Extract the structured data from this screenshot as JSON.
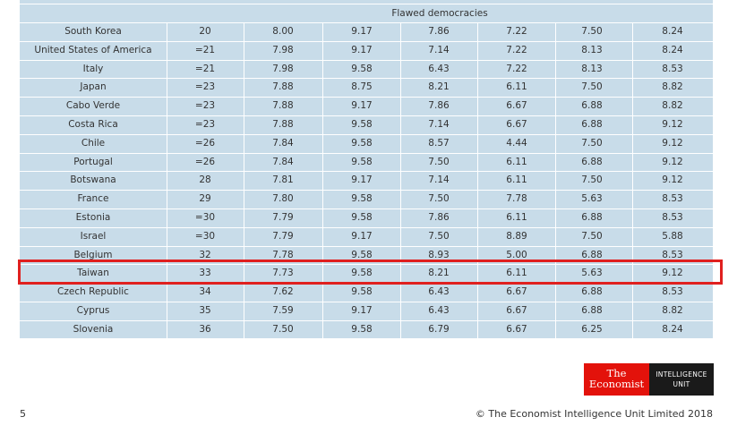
{
  "table": {
    "section_label": "Flawed democracies",
    "rows": [
      [
        "South Korea",
        "20",
        "8.00",
        "9.17",
        "7.86",
        "7.22",
        "7.50",
        "8.24"
      ],
      [
        "United States of America",
        "=21",
        "7.98",
        "9.17",
        "7.14",
        "7.22",
        "8.13",
        "8.24"
      ],
      [
        "Italy",
        "=21",
        "7.98",
        "9.58",
        "6.43",
        "7.22",
        "8.13",
        "8.53"
      ],
      [
        "Japan",
        "=23",
        "7.88",
        "8.75",
        "8.21",
        "6.11",
        "7.50",
        "8.82"
      ],
      [
        "Cabo Verde",
        "=23",
        "7.88",
        "9.17",
        "7.86",
        "6.67",
        "6.88",
        "8.82"
      ],
      [
        "Costa Rica",
        "=23",
        "7.88",
        "9.58",
        "7.14",
        "6.67",
        "6.88",
        "9.12"
      ],
      [
        "Chile",
        "=26",
        "7.84",
        "9.58",
        "8.57",
        "4.44",
        "7.50",
        "9.12"
      ],
      [
        "Portugal",
        "=26",
        "7.84",
        "9.58",
        "7.50",
        "6.11",
        "6.88",
        "9.12"
      ],
      [
        "Botswana",
        "28",
        "7.81",
        "9.17",
        "7.14",
        "6.11",
        "7.50",
        "9.12"
      ],
      [
        "France",
        "29",
        "7.80",
        "9.58",
        "7.50",
        "7.78",
        "5.63",
        "8.53"
      ],
      [
        "Estonia",
        "=30",
        "7.79",
        "9.58",
        "7.86",
        "6.11",
        "6.88",
        "8.53"
      ],
      [
        "Israel",
        "=30",
        "7.79",
        "9.17",
        "7.50",
        "8.89",
        "7.50",
        "5.88"
      ],
      [
        "Belgium",
        "32",
        "7.78",
        "9.58",
        "8.93",
        "5.00",
        "6.88",
        "8.53"
      ],
      [
        "Taiwan",
        "33",
        "7.73",
        "9.58",
        "8.21",
        "6.11",
        "5.63",
        "9.12"
      ],
      [
        "Czech Republic",
        "34",
        "7.62",
        "9.58",
        "6.43",
        "6.67",
        "6.88",
        "8.53"
      ],
      [
        "Cyprus",
        "35",
        "7.59",
        "9.17",
        "6.43",
        "6.67",
        "6.88",
        "8.82"
      ],
      [
        "Slovenia",
        "36",
        "7.50",
        "9.58",
        "6.79",
        "6.67",
        "6.25",
        "8.24"
      ]
    ]
  },
  "logo": {
    "the": "The",
    "economist": "Economist",
    "intelligence": "INTELLIGENCE",
    "unit": "UNIT"
  },
  "footer": {
    "page_number": "5",
    "copyright": "© The Economist Intelligence Unit Limited 2018"
  }
}
